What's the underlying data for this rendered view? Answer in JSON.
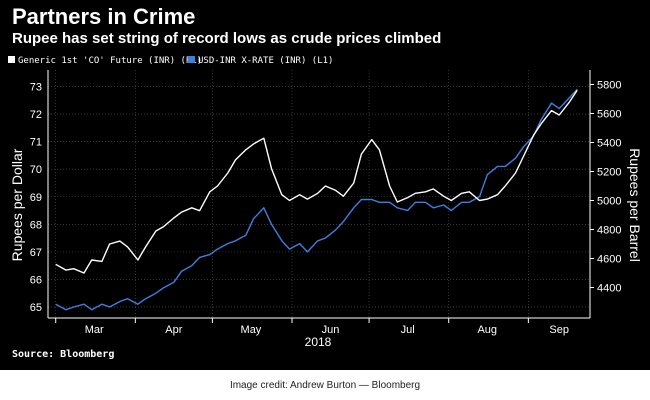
{
  "header": {
    "title": "Partners in Crime",
    "subtitle": "Rupee has set string of record lows as crude prices climbed"
  },
  "footer": {
    "source": "Source: Bloomberg",
    "credit": "Image credit: Andrew Burton — Bloomberg"
  },
  "colors": {
    "background": "#000000",
    "crude_series": "#ffffff",
    "rupee_series": "#3d7fe0",
    "axis_text": "#ffffff",
    "grid": "#555555"
  },
  "chart_data": {
    "type": "line",
    "title": "Partners in Crime",
    "subtitle": "Rupee has set string of record lows as crude prices climbed",
    "year_label": "2018",
    "grid": true,
    "legend_position": "top-left",
    "x_months": [
      "Mar",
      "Apr",
      "May",
      "Jun",
      "Jul",
      "Aug",
      "Sep"
    ],
    "x_range": [
      "2018-02-26",
      "2018-09-25"
    ],
    "left_axis": {
      "label": "Rupees per Dollar",
      "min": 64.6,
      "max": 73.6,
      "ticks": [
        65,
        66,
        67,
        68,
        69,
        70,
        71,
        72,
        73
      ]
    },
    "right_axis": {
      "label": "Rupees per Barrel",
      "min": 4190,
      "max": 5900,
      "ticks": [
        4400,
        4600,
        4800,
        5000,
        5200,
        5400,
        5600,
        5800
      ]
    },
    "series": [
      {
        "name": "Generic 1st 'CO' Future (INR)  (R1)",
        "axis": "right",
        "color": "#ffffff",
        "x": [
          "2018-03-01",
          "2018-03-05",
          "2018-03-08",
          "2018-03-12",
          "2018-03-15",
          "2018-03-19",
          "2018-03-22",
          "2018-03-26",
          "2018-03-29",
          "2018-04-02",
          "2018-04-05",
          "2018-04-09",
          "2018-04-12",
          "2018-04-16",
          "2018-04-19",
          "2018-04-23",
          "2018-04-26",
          "2018-04-30",
          "2018-05-03",
          "2018-05-07",
          "2018-05-10",
          "2018-05-14",
          "2018-05-17",
          "2018-05-21",
          "2018-05-24",
          "2018-05-28",
          "2018-05-31",
          "2018-06-04",
          "2018-06-07",
          "2018-06-11",
          "2018-06-14",
          "2018-06-18",
          "2018-06-21",
          "2018-06-25",
          "2018-06-28",
          "2018-07-02",
          "2018-07-05",
          "2018-07-09",
          "2018-07-12",
          "2018-07-16",
          "2018-07-19",
          "2018-07-23",
          "2018-07-26",
          "2018-07-30",
          "2018-08-02",
          "2018-08-06",
          "2018-08-09",
          "2018-08-13",
          "2018-08-16",
          "2018-08-20",
          "2018-08-23",
          "2018-08-27",
          "2018-08-30",
          "2018-09-03",
          "2018-09-06",
          "2018-09-10",
          "2018-09-13",
          "2018-09-17",
          "2018-09-20"
        ],
        "values": [
          4560,
          4520,
          4530,
          4500,
          4590,
          4580,
          4700,
          4720,
          4680,
          4590,
          4680,
          4790,
          4820,
          4880,
          4920,
          4950,
          4930,
          5060,
          5100,
          5190,
          5280,
          5350,
          5390,
          5430,
          5220,
          5040,
          5000,
          5040,
          5010,
          5050,
          5100,
          5070,
          5030,
          5120,
          5320,
          5420,
          5350,
          5100,
          4990,
          5020,
          5050,
          5060,
          5080,
          5030,
          5000,
          5050,
          5060,
          5000,
          5010,
          5040,
          5100,
          5190,
          5300,
          5450,
          5530,
          5620,
          5590,
          5680,
          5760
        ]
      },
      {
        "name": "USD-INR X-RATE (INR)  (L1)",
        "axis": "left",
        "color": "#3d7fe0",
        "x": [
          "2018-03-01",
          "2018-03-05",
          "2018-03-08",
          "2018-03-12",
          "2018-03-15",
          "2018-03-19",
          "2018-03-22",
          "2018-03-26",
          "2018-03-29",
          "2018-04-02",
          "2018-04-05",
          "2018-04-09",
          "2018-04-12",
          "2018-04-16",
          "2018-04-19",
          "2018-04-23",
          "2018-04-26",
          "2018-04-30",
          "2018-05-03",
          "2018-05-07",
          "2018-05-10",
          "2018-05-14",
          "2018-05-17",
          "2018-05-21",
          "2018-05-24",
          "2018-05-28",
          "2018-05-31",
          "2018-06-04",
          "2018-06-07",
          "2018-06-11",
          "2018-06-14",
          "2018-06-18",
          "2018-06-21",
          "2018-06-25",
          "2018-06-28",
          "2018-07-02",
          "2018-07-05",
          "2018-07-09",
          "2018-07-12",
          "2018-07-16",
          "2018-07-19",
          "2018-07-23",
          "2018-07-26",
          "2018-07-30",
          "2018-08-02",
          "2018-08-06",
          "2018-08-09",
          "2018-08-13",
          "2018-08-16",
          "2018-08-20",
          "2018-08-23",
          "2018-08-27",
          "2018-08-30",
          "2018-09-03",
          "2018-09-06",
          "2018-09-10",
          "2018-09-13",
          "2018-09-17",
          "2018-09-20"
        ],
        "values": [
          65.1,
          64.9,
          65.0,
          65.1,
          64.9,
          65.1,
          65.0,
          65.2,
          65.3,
          65.1,
          65.3,
          65.5,
          65.7,
          65.9,
          66.3,
          66.5,
          66.8,
          66.9,
          67.1,
          67.3,
          67.4,
          67.6,
          68.2,
          68.6,
          68.0,
          67.4,
          67.1,
          67.3,
          67.0,
          67.4,
          67.5,
          67.8,
          68.1,
          68.6,
          68.9,
          68.9,
          68.8,
          68.8,
          68.6,
          68.5,
          68.8,
          68.8,
          68.6,
          68.7,
          68.5,
          68.8,
          68.8,
          69.0,
          69.8,
          70.1,
          70.1,
          70.4,
          70.8,
          71.2,
          71.8,
          72.4,
          72.2,
          72.6,
          72.9
        ]
      }
    ]
  }
}
